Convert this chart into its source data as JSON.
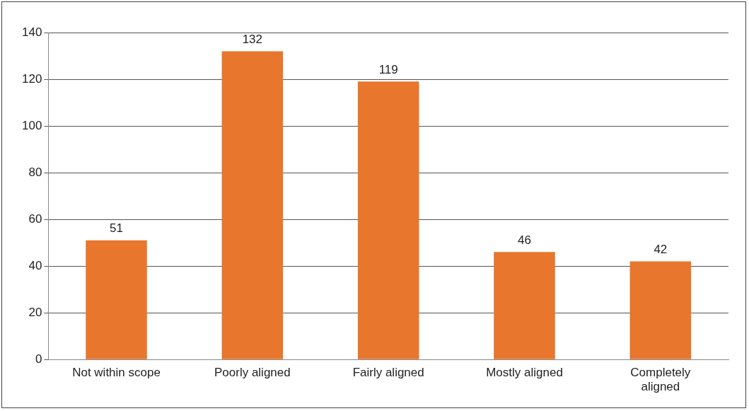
{
  "chart_data": {
    "type": "bar",
    "categories": [
      "Not within scope",
      "Poorly aligned",
      "Fairly aligned",
      "Mostly aligned",
      "Completely aligned"
    ],
    "values": [
      51,
      132,
      119,
      46,
      42
    ],
    "color": "#e8762d",
    "ylim": [
      0,
      140
    ],
    "yticks": [
      0,
      20,
      40,
      60,
      80,
      100,
      120,
      140
    ],
    "grid": "y",
    "data_labels": true,
    "legend": false
  }
}
